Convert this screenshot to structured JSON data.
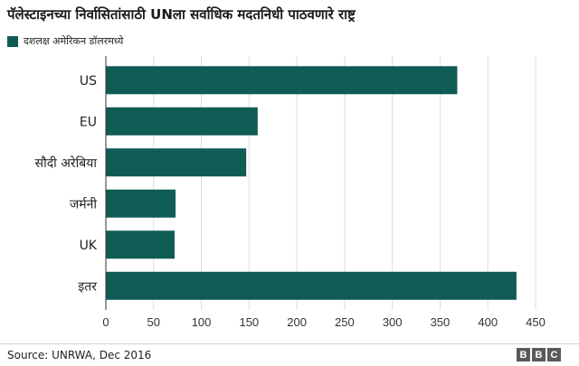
{
  "title": "पॅलेस्टाइनच्या निर्वासितांसाठी UNला सर्वाधिक मदतनिधी पाठवणारे राष्ट्र",
  "legend_label": "दशलक्ष अमेरिकन डॉलरमध्ये",
  "source": "Source: UNRWA, Dec 2016",
  "logo": [
    "B",
    "B",
    "C"
  ],
  "colors": {
    "bar": "#0f5c55",
    "grid": "#dddddd",
    "axis": "#333333"
  },
  "chart_data": {
    "type": "bar",
    "orientation": "horizontal",
    "categories": [
      "US",
      "EU",
      "सौदी अरेबिया",
      "जर्मनी",
      "UK",
      "इतर"
    ],
    "series": [
      {
        "values": [
          368,
          159,
          147,
          73,
          72,
          430
        ]
      }
    ],
    "xlim": [
      0,
      450
    ],
    "xticks": [
      0,
      50,
      100,
      150,
      200,
      250,
      300,
      350,
      400,
      450
    ],
    "grid": true,
    "legend": "top-left"
  }
}
